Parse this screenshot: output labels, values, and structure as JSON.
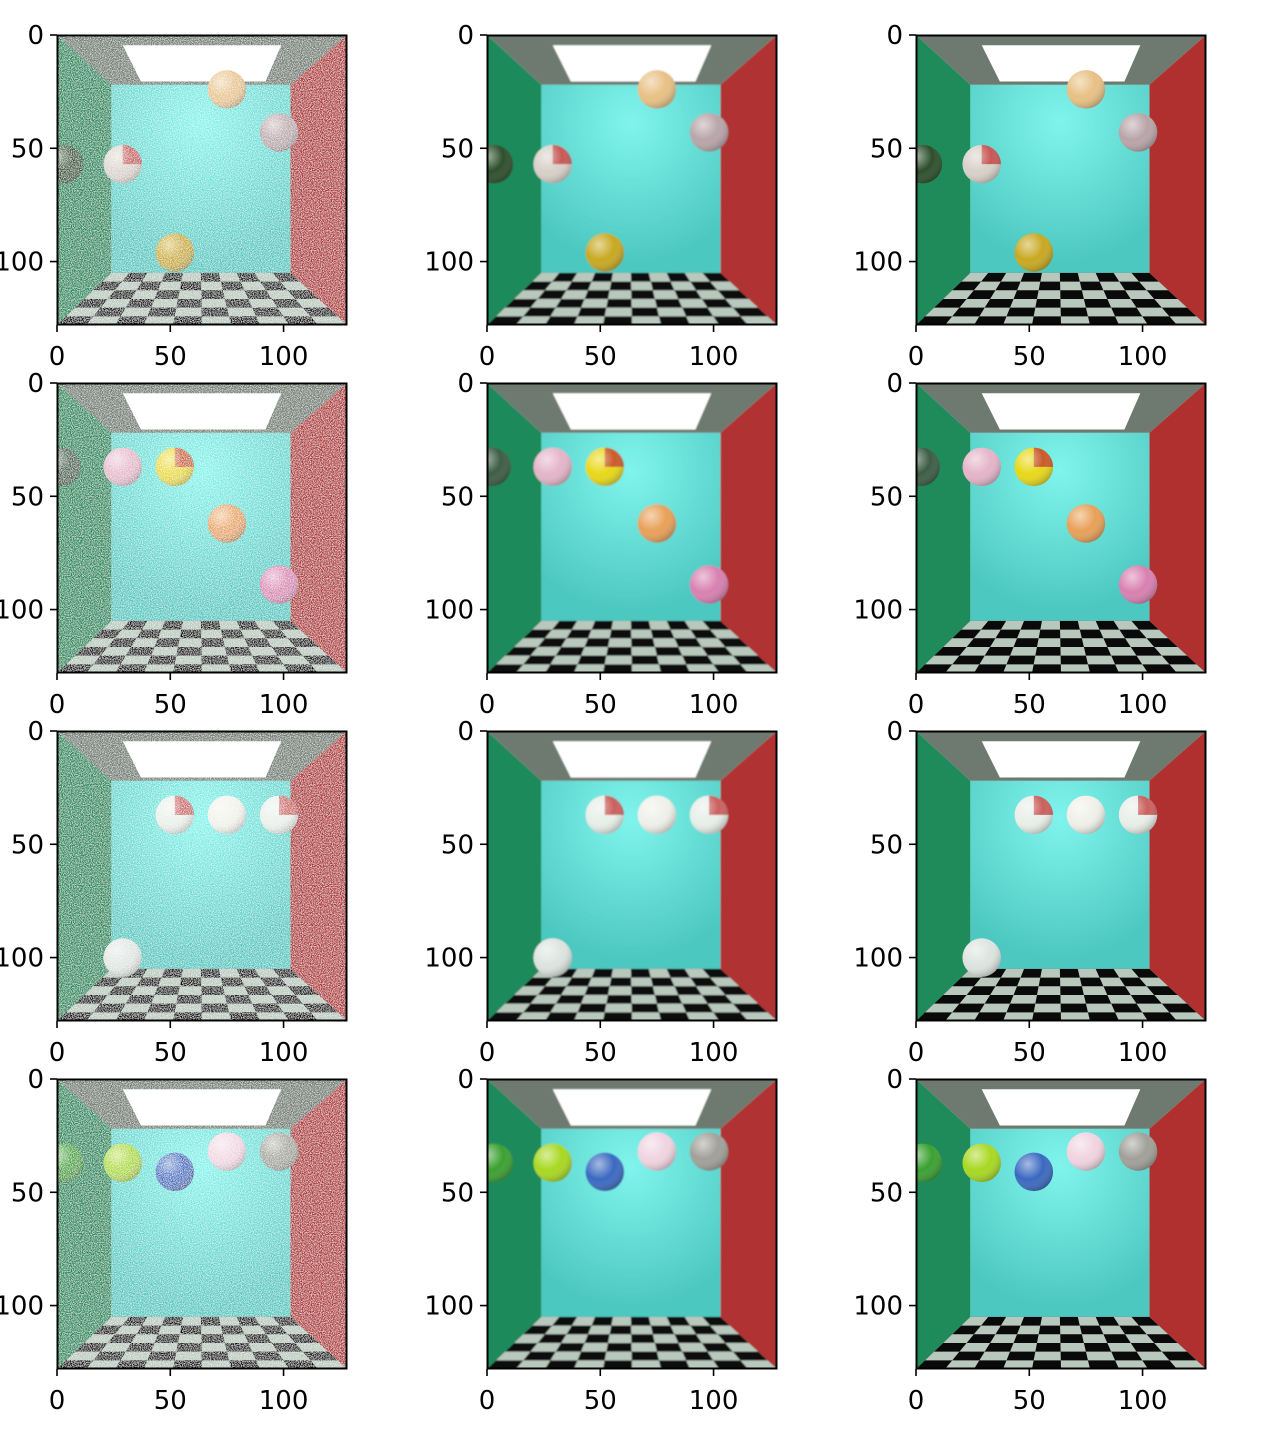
{
  "figure": {
    "grid": {
      "rows": 4,
      "cols": 3
    },
    "image_extent": [
      0,
      128
    ],
    "xticks": [
      0,
      50,
      100
    ],
    "yticks": [
      0,
      50,
      100
    ],
    "xtick_labels": [
      "0",
      "50",
      "100"
    ],
    "ytick_labels": [
      "0",
      "50",
      "100"
    ],
    "colors": {
      "frame": "#000000",
      "background": "#ffffff",
      "left_wall": "#1f8a5a",
      "back_wall": "#4cc8c0",
      "right_wall": "#b03030",
      "ceiling": "#6e7a70",
      "floor_light": "#b8c8bc",
      "floor_dark": "#0a0a0a",
      "light_panel": "#ffffff"
    },
    "column_render_styles": [
      "noisy",
      "denoised",
      "reference"
    ],
    "panels": [
      {
        "row": 0,
        "spheres": [
          {
            "x": 75,
            "y": 24,
            "r": 8.5,
            "color": "#e8c084"
          },
          {
            "x": 98,
            "y": 43,
            "r": 8.5,
            "color": "#b8a4a8"
          },
          {
            "x": 29,
            "y": 57,
            "r": 8.5,
            "color": "#d8d0c8",
            "accent": "#c03030"
          },
          {
            "x": 3,
            "y": 57,
            "r": 8.5,
            "color": "#2c4e2a"
          },
          {
            "x": 52,
            "y": 96,
            "r": 8.5,
            "color": "#c8a820"
          }
        ]
      },
      {
        "row": 1,
        "spheres": [
          {
            "x": 2,
            "y": 37,
            "r": 8.5,
            "color": "#3c5c44"
          },
          {
            "x": 29,
            "y": 37,
            "r": 8.5,
            "color": "#e4b4c8"
          },
          {
            "x": 52,
            "y": 37,
            "r": 8.5,
            "color": "#e8d818",
            "accent": "#c03030"
          },
          {
            "x": 75,
            "y": 62,
            "r": 8.5,
            "color": "#e8a058"
          },
          {
            "x": 98,
            "y": 89,
            "r": 8.5,
            "color": "#d880b0"
          }
        ]
      },
      {
        "row": 2,
        "spheres": [
          {
            "x": 52,
            "y": 37,
            "r": 8.5,
            "color": "#e8eee8",
            "accent": "#c03030"
          },
          {
            "x": 75,
            "y": 37,
            "r": 8.5,
            "color": "#f0f0ea"
          },
          {
            "x": 98,
            "y": 37,
            "r": 8.5,
            "color": "#e8eee8",
            "accent": "#c03030"
          },
          {
            "x": 29,
            "y": 100,
            "r": 8.5,
            "color": "#dde4e0"
          }
        ]
      },
      {
        "row": 3,
        "spheres": [
          {
            "x": 3,
            "y": 37,
            "r": 8.5,
            "color": "#3aa030"
          },
          {
            "x": 29,
            "y": 37,
            "r": 8.5,
            "color": "#a8d820"
          },
          {
            "x": 52,
            "y": 41,
            "r": 8.5,
            "color": "#3a68c0"
          },
          {
            "x": 75,
            "y": 32,
            "r": 8.5,
            "color": "#f0d4e0"
          },
          {
            "x": 98,
            "y": 32,
            "r": 8.5,
            "color": "#a0a098"
          }
        ]
      }
    ]
  }
}
